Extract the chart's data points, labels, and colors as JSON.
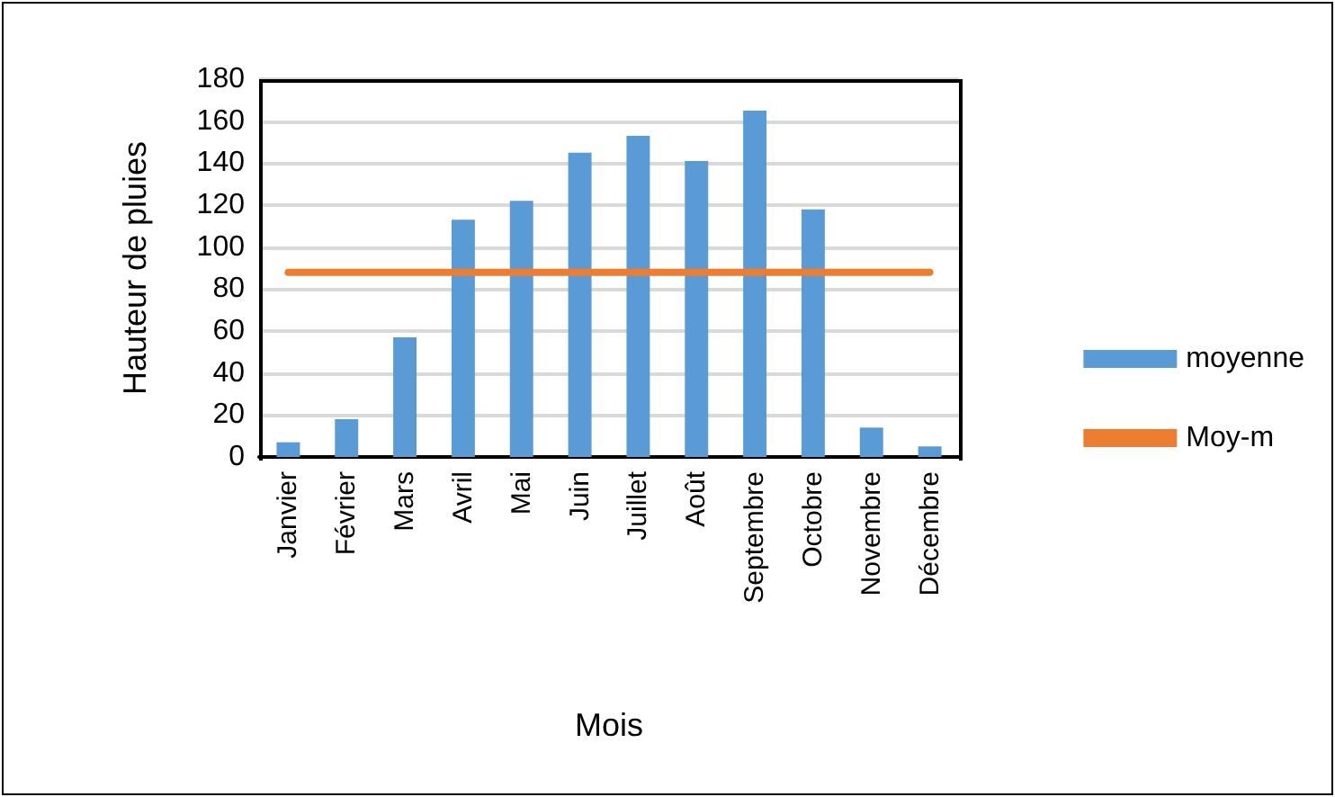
{
  "chart_data": {
    "type": "bar",
    "xlabel": "Mois",
    "ylabel": "Hauteur de pluies",
    "categories": [
      "Janvier",
      "Février",
      "Mars",
      "Avril",
      "Mai",
      "Juin",
      "Juillet",
      "Août",
      "Septembre",
      "Octobre",
      "Novembre",
      "Décembre"
    ],
    "series": [
      {
        "name": "moyenne",
        "color": "#5b9bd5",
        "values": [
          7,
          18,
          57,
          113,
          122,
          145,
          153,
          141,
          165,
          118,
          14,
          5
        ]
      },
      {
        "name": "Moy-m",
        "type": "line",
        "color": "#ed7d31",
        "marker": "none",
        "values": [
          88,
          88,
          88,
          88,
          88,
          88,
          88,
          88,
          88,
          88,
          88,
          88
        ]
      }
    ],
    "ylim": [
      0,
      180
    ],
    "yticks": [
      0,
      20,
      40,
      60,
      80,
      100,
      120,
      140,
      160,
      180
    ],
    "grid": "y",
    "legend": "right"
  }
}
